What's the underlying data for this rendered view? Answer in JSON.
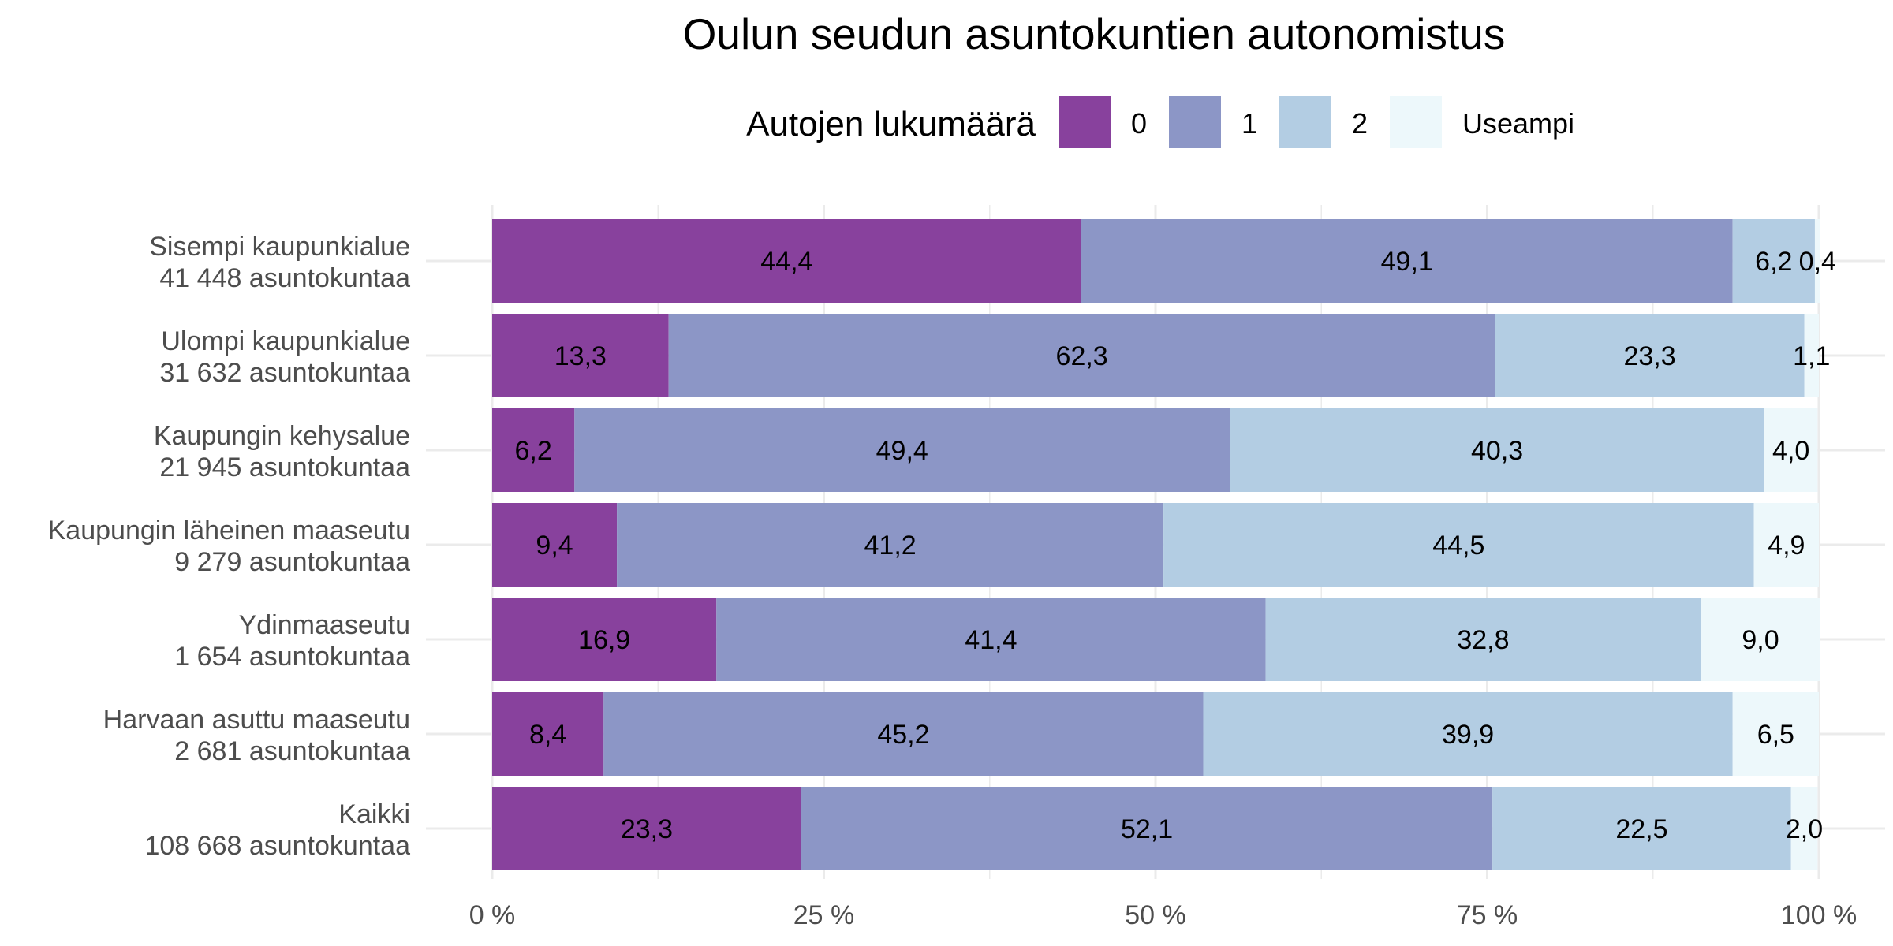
{
  "chart_data": {
    "type": "bar",
    "orientation": "horizontal",
    "stacked": true,
    "title": "Oulun seudun asuntokuntien autonomistus",
    "legend": {
      "title": "Autojen lukumäärä",
      "position": "top"
    },
    "categories": [
      {
        "name": "Sisempi kaupunkialue",
        "sub": "41 448 asuntokuntaa"
      },
      {
        "name": "Ulompi kaupunkialue",
        "sub": "31 632 asuntokuntaa"
      },
      {
        "name": "Kaupungin kehysalue",
        "sub": "21 945 asuntokuntaa"
      },
      {
        "name": "Kaupungin läheinen maaseutu",
        "sub": "9 279 asuntokuntaa"
      },
      {
        "name": "Ydinmaaseutu",
        "sub": "1 654 asuntokuntaa"
      },
      {
        "name": "Harvaan asuttu maaseutu",
        "sub": "2 681 asuntokuntaa"
      },
      {
        "name": "Kaikki",
        "sub": "108 668 asuntokuntaa"
      }
    ],
    "series": [
      {
        "name": "0",
        "color": "#88419d",
        "values": [
          44.4,
          13.3,
          6.2,
          9.4,
          16.9,
          8.4,
          23.3
        ],
        "labels": [
          "44,4",
          "13,3",
          "6,2",
          "9,4",
          "16,9",
          "8,4",
          "23,3"
        ]
      },
      {
        "name": "1",
        "color": "#8c96c6",
        "values": [
          49.1,
          62.3,
          49.4,
          41.2,
          41.4,
          45.2,
          52.1
        ],
        "labels": [
          "49,1",
          "62,3",
          "49,4",
          "41,2",
          "41,4",
          "45,2",
          "52,1"
        ]
      },
      {
        "name": "2",
        "color": "#b3cde3",
        "values": [
          6.2,
          23.3,
          40.3,
          44.5,
          32.8,
          39.9,
          22.5
        ],
        "labels": [
          "6,2",
          "23,3",
          "40,3",
          "44,5",
          "32,8",
          "39,9",
          "22,5"
        ]
      },
      {
        "name": "Useampi",
        "color": "#edf8fb",
        "values": [
          0.4,
          1.1,
          4.0,
          4.9,
          9.0,
          6.5,
          2.0
        ],
        "labels": [
          "0,4",
          "1,1",
          "4,0",
          "4,9",
          "9,0",
          "6,5",
          "2,0"
        ]
      }
    ],
    "xlim": [
      0,
      100
    ],
    "xticks": [
      {
        "value": 0,
        "label": "0 %"
      },
      {
        "value": 25,
        "label": "25 %"
      },
      {
        "value": 50,
        "label": "50 %"
      },
      {
        "value": 75,
        "label": "75 %"
      },
      {
        "value": 100,
        "label": "100 %"
      }
    ],
    "grid": true,
    "grid_color": "#ebebeb"
  }
}
